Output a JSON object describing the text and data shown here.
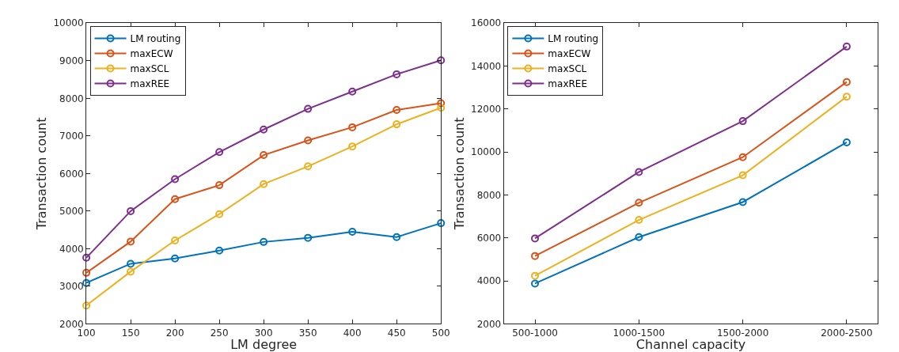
{
  "chart_data": [
    {
      "type": "line",
      "xlabel": "LM degree",
      "ylabel": "Transaction count",
      "x": [
        100,
        150,
        200,
        250,
        300,
        350,
        400,
        450,
        500
      ],
      "xlim": [
        100,
        500
      ],
      "xticks": [
        100,
        150,
        200,
        250,
        300,
        350,
        400,
        450,
        500
      ],
      "ylim": [
        2000,
        10000
      ],
      "yticks": [
        2000,
        3000,
        4000,
        5000,
        6000,
        7000,
        8000,
        9000,
        10000
      ],
      "legend": "top left",
      "marker": "circle",
      "line_style": "solid",
      "series": [
        {
          "name": "LM routing",
          "color": "#0072bd",
          "values": [
            3090,
            3600,
            3740,
            3950,
            4180,
            4290,
            4450,
            4310,
            4680
          ]
        },
        {
          "name": "maxECW",
          "color": "#d95319",
          "values": [
            3360,
            4190,
            5320,
            5690,
            6490,
            6880,
            7230,
            7690,
            7870
          ]
        },
        {
          "name": "maxSCL",
          "color": "#edb120",
          "values": [
            2490,
            3390,
            4220,
            4920,
            5720,
            6190,
            6720,
            7310,
            7750
          ]
        },
        {
          "name": "maxREE",
          "color": "#7e2f8e",
          "values": [
            3760,
            5000,
            5850,
            6570,
            7170,
            7720,
            8180,
            8640,
            9010
          ]
        }
      ]
    },
    {
      "type": "line",
      "xlabel": "Channel capacity",
      "ylabel": "Transaction count",
      "categories": [
        "500-1000",
        "1000-1500",
        "1500-2000",
        "2000-2500"
      ],
      "ylim": [
        2000,
        16000
      ],
      "yticks": [
        2000,
        4000,
        6000,
        8000,
        10000,
        12000,
        14000,
        16000
      ],
      "legend": "top left",
      "marker": "circle",
      "line_style": "solid",
      "series": [
        {
          "name": "LM routing",
          "color": "#0072bd",
          "values": [
            3880,
            6040,
            7670,
            10450
          ]
        },
        {
          "name": "maxECW",
          "color": "#d95319",
          "values": [
            5160,
            7640,
            9760,
            13260
          ]
        },
        {
          "name": "maxSCL",
          "color": "#edb120",
          "values": [
            4240,
            6840,
            8920,
            12580
          ]
        },
        {
          "name": "maxREE",
          "color": "#7e2f8e",
          "values": [
            5980,
            9070,
            11440,
            14910
          ]
        }
      ]
    }
  ]
}
